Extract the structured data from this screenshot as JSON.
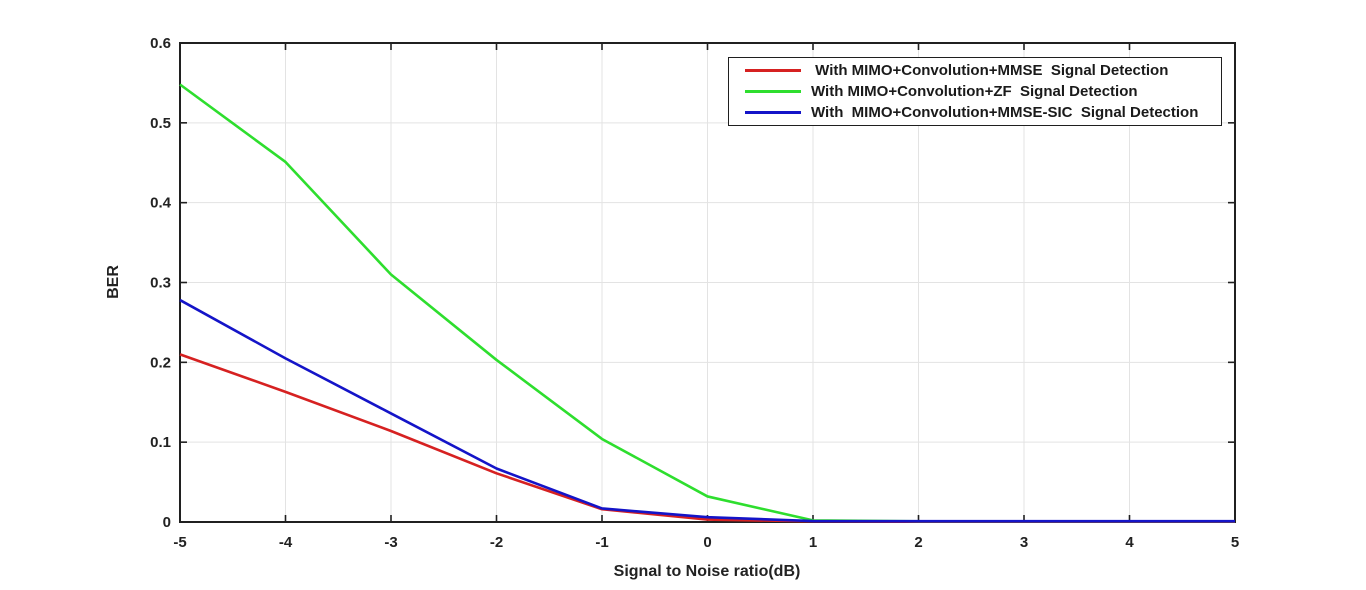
{
  "figure": {
    "background_color": "#ffffff",
    "axis_color": "#202020",
    "grid_color": "#e3e3e3"
  },
  "chart_data": {
    "type": "line",
    "title": "",
    "xlabel": "Signal to Noise ratio(dB)",
    "ylabel": "BER",
    "xlim": [
      -5,
      5
    ],
    "ylim": [
      0,
      0.6
    ],
    "grid": true,
    "box": true,
    "legend_position": "top-right",
    "x": [
      -5,
      -4,
      -3,
      -2,
      -1,
      0,
      1,
      2,
      3,
      4,
      5
    ],
    "xtick_values": [
      -5,
      -4,
      -3,
      -2,
      -1,
      0,
      1,
      2,
      3,
      4,
      5
    ],
    "xtick_labels": [
      "-5",
      "-4",
      "-3",
      "-2",
      "-1",
      "0",
      "1",
      "2",
      "3",
      "4",
      "5"
    ],
    "ytick_values": [
      0,
      0.1,
      0.2,
      0.3,
      0.4,
      0.5,
      0.6
    ],
    "ytick_labels": [
      "0",
      "0.1",
      "0.2",
      "0.3",
      "0.4",
      "0.5",
      "0.6"
    ],
    "series": [
      {
        "name": " With MIMO+Convolution+MMSE  Signal Detection",
        "color": "#d62121",
        "values": [
          0.21,
          0.163,
          0.114,
          0.061,
          0.016,
          0.003,
          0.0008,
          0.0005,
          0.0005,
          0.0005,
          0.0005
        ]
      },
      {
        "name": "With MIMO+Convolution+ZF  Signal Detection",
        "color": "#2ede2e",
        "values": [
          0.548,
          0.451,
          0.31,
          0.203,
          0.104,
          0.032,
          0.002,
          0.0008,
          0.0008,
          0.0008,
          0.0008
        ]
      },
      {
        "name": "With  MIMO+Convolution+MMSE-SIC  Signal Detection",
        "color": "#1414c8",
        "values": [
          0.278,
          0.205,
          0.136,
          0.067,
          0.017,
          0.006,
          0.0012,
          0.001,
          0.001,
          0.001,
          0.001
        ]
      }
    ]
  }
}
